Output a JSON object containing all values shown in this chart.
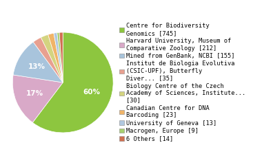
{
  "labels": [
    "Centre for Biodiversity\nGenomics [745]",
    "Harvard University, Museum of\nComparative Zoology [212]",
    "Mined from GenBank, NCBI [155]",
    "Institut de Biologia Evolutiva\n(CSIC-UPF), Butterfly\nDiver... [35]",
    "Biology Centre of the Czech\nAcademy of Sciences, Institute...\n[30]",
    "Canadian Centre for DNA\nBarcoding [23]",
    "University of Geneva [13]",
    "Macrogen, Europe [9]",
    "6 Others [14]"
  ],
  "values": [
    745,
    212,
    155,
    35,
    30,
    23,
    13,
    9,
    14
  ],
  "colors": [
    "#8dc63f",
    "#d9a9c8",
    "#a8c4dc",
    "#e8a090",
    "#d4d480",
    "#f0b468",
    "#b0c8e0",
    "#a8d070",
    "#d07050"
  ],
  "startangle": 90,
  "background_color": "#ffffff",
  "text_color": "#000000",
  "legend_fontsize": 6.2,
  "pct_fontsize": 7.5,
  "pct_color": "#ffffff",
  "pct_threshold": 8.0
}
